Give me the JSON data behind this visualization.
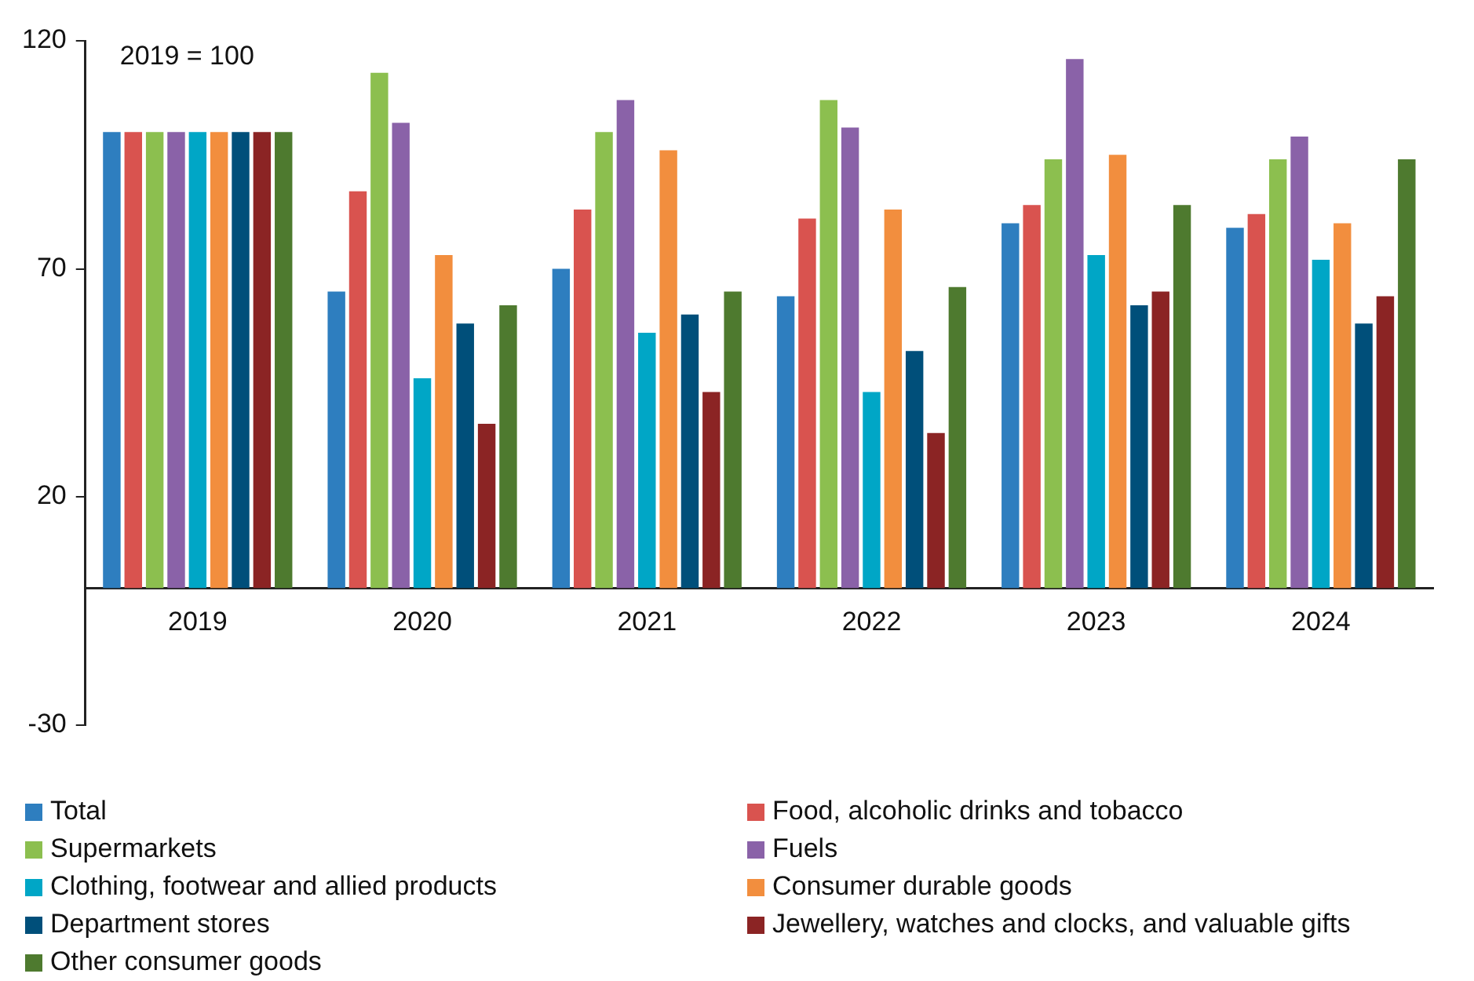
{
  "chart_data": {
    "type": "bar",
    "categories": [
      "2019",
      "2020",
      "2021",
      "2022",
      "2023",
      "2024"
    ],
    "series": [
      {
        "name": "Total",
        "color": "#2e7ebf",
        "values": [
          100,
          65,
          70,
          64,
          80,
          79
        ]
      },
      {
        "name": "Food, alcoholic drinks and tobacco",
        "color": "#d9534f",
        "values": [
          100,
          87,
          83,
          81,
          84,
          82
        ]
      },
      {
        "name": "Supermarkets",
        "color": "#8cbf4f",
        "values": [
          100,
          113,
          100,
          107,
          94,
          94
        ]
      },
      {
        "name": "Fuels",
        "color": "#8a62a8",
        "values": [
          100,
          102,
          107,
          101,
          116,
          99
        ]
      },
      {
        "name": "Clothing, footwear and allied products",
        "color": "#00a6c6",
        "values": [
          100,
          46,
          56,
          43,
          73,
          72
        ]
      },
      {
        "name": "Consumer durable goods",
        "color": "#f28e3e",
        "values": [
          100,
          73,
          96,
          83,
          95,
          80
        ]
      },
      {
        "name": "Department stores",
        "color": "#004f7a",
        "values": [
          100,
          58,
          60,
          52,
          62,
          58
        ]
      },
      {
        "name": "Jewellery, watches and clocks, and valuable gifts",
        "color": "#8b2424",
        "values": [
          100,
          36,
          43,
          34,
          65,
          64
        ]
      },
      {
        "name": "Other consumer goods",
        "color": "#4e7a2f",
        "values": [
          100,
          62,
          65,
          66,
          84,
          94
        ]
      }
    ],
    "ylim": [
      -30,
      120
    ],
    "yticks": [
      -30,
      20,
      70,
      120
    ],
    "grid": false,
    "legend": "bottom",
    "annotations": [
      "2019 = 100"
    ]
  }
}
